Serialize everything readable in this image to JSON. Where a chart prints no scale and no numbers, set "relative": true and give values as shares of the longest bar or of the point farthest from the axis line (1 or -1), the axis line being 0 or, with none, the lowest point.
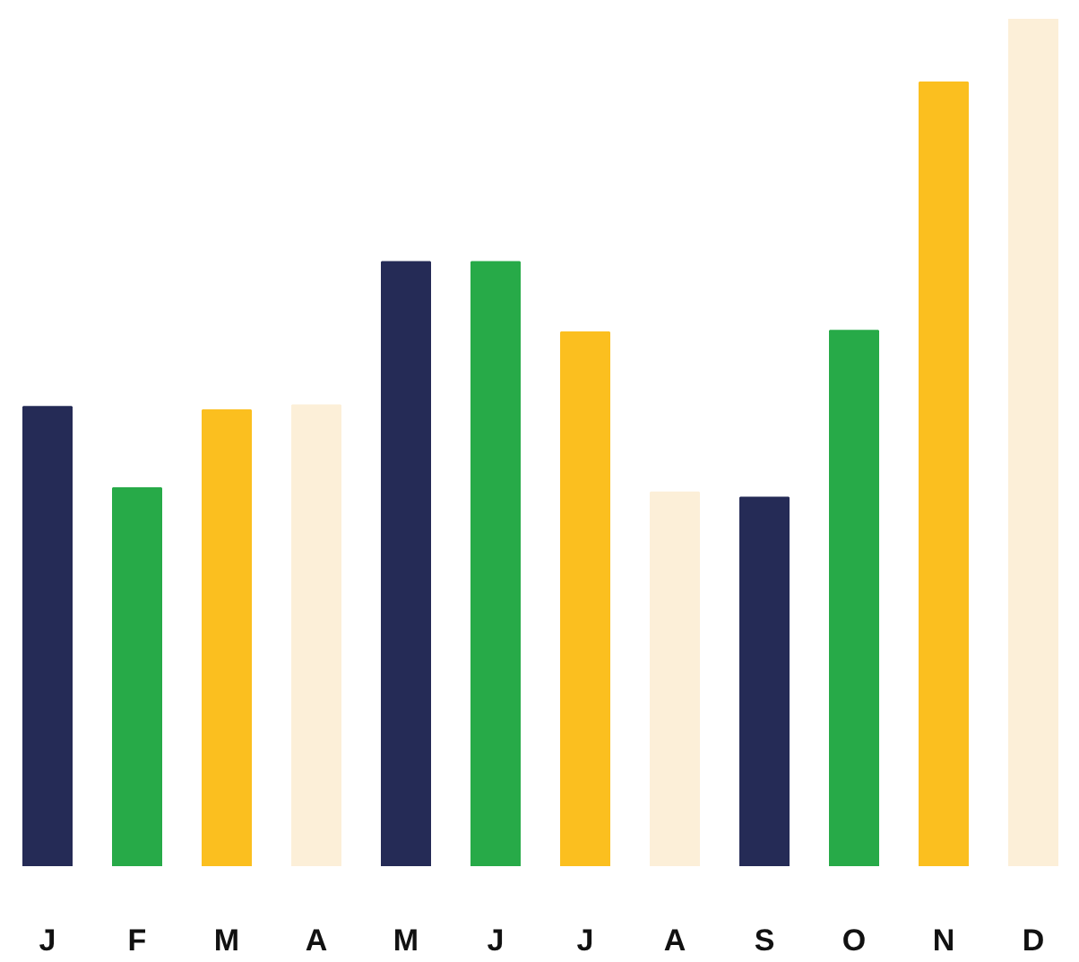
{
  "chart_data": {
    "type": "bar",
    "relative": true,
    "categories": [
      "J",
      "F",
      "M",
      "A",
      "M",
      "J",
      "J",
      "A",
      "S",
      "O",
      "N",
      "D"
    ],
    "values": [
      0.542,
      0.446,
      0.538,
      0.544,
      0.713,
      0.713,
      0.63,
      0.441,
      0.435,
      0.632,
      0.925,
      1
    ],
    "colors": [
      "#252b56",
      "#27aa48",
      "#fbbf1f",
      "#fcefd8",
      "#252b56",
      "#27aa48",
      "#fbbf1f",
      "#fcefd8",
      "#252b56",
      "#27aa48",
      "#fbbf1f",
      "#fcefd8"
    ],
    "grid": false
  }
}
